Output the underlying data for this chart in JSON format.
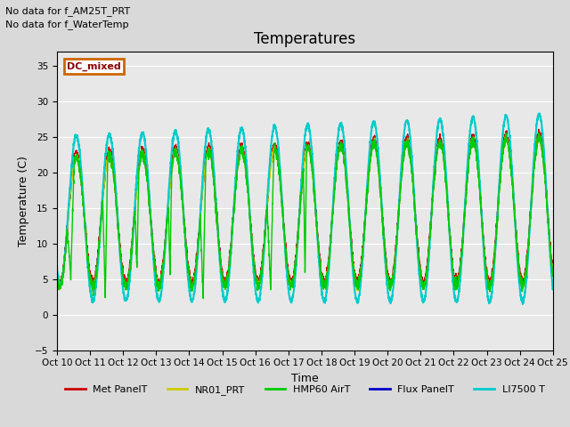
{
  "title": "Temperatures",
  "xlabel": "Time",
  "ylabel": "Temperature (C)",
  "ylim": [
    -5,
    37
  ],
  "xlim": [
    0,
    360
  ],
  "annotation1": "No data for f_AM25T_PRT",
  "annotation2": "No data for f_WaterTemp",
  "dc_mixed_label": "DC_mixed",
  "legend_entries": [
    "Met PanelT",
    "NR01_PRT",
    "HMP60 AirT",
    "Flux PanelT",
    "LI7500 T"
  ],
  "line_colors": [
    "#cc0000",
    "#cccc00",
    "#00cc00",
    "#0000cc",
    "#00cccc"
  ],
  "line_widths": [
    1.0,
    1.0,
    1.0,
    1.0,
    1.5
  ],
  "bg_color": "#d9d9d9",
  "plot_bg": "#e8e8e8",
  "yticks": [
    -5,
    0,
    5,
    10,
    15,
    20,
    25,
    30,
    35
  ],
  "xtick_labels": [
    "Oct 10",
    "Oct 11",
    "Oct 12",
    "Oct 13",
    "Oct 14",
    "Oct 15",
    "Oct 16",
    "Oct 17",
    "Oct 18",
    "Oct 19",
    "Oct 20",
    "Oct 21",
    "Oct 22",
    "Oct 23",
    "Oct 24",
    "Oct 25"
  ],
  "xtick_positions": [
    0,
    24,
    48,
    72,
    96,
    120,
    144,
    168,
    192,
    216,
    240,
    264,
    288,
    312,
    336,
    360
  ],
  "figsize": [
    6.4,
    4.8
  ],
  "dpi": 100
}
